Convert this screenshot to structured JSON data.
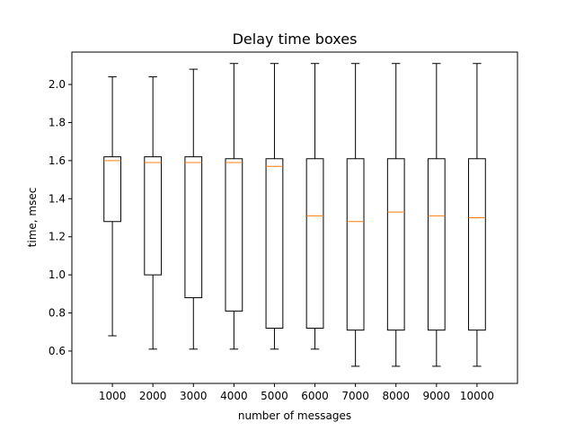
{
  "chart_data": {
    "type": "box",
    "title": "Delay time boxes",
    "xlabel": "number of messages",
    "ylabel": "time, msec",
    "categories": [
      "1000",
      "2000",
      "3000",
      "4000",
      "5000",
      "6000",
      "7000",
      "8000",
      "9000",
      "10000"
    ],
    "ylim": [
      0.43,
      2.17
    ],
    "yticks": [
      "0.6",
      "0.8",
      "1.0",
      "1.2",
      "1.4",
      "1.6",
      "1.8",
      "2.0"
    ],
    "grid": false,
    "colors": {
      "box": "#000000",
      "median": "#ff7f0e"
    },
    "boxes": [
      {
        "min": 0.68,
        "q1": 1.28,
        "median": 1.6,
        "q3": 1.62,
        "max": 2.04
      },
      {
        "min": 0.61,
        "q1": 1.0,
        "median": 1.59,
        "q3": 1.62,
        "max": 2.04
      },
      {
        "min": 0.61,
        "q1": 0.88,
        "median": 1.59,
        "q3": 1.62,
        "max": 2.08
      },
      {
        "min": 0.61,
        "q1": 0.81,
        "median": 1.59,
        "q3": 1.61,
        "max": 2.11
      },
      {
        "min": 0.61,
        "q1": 0.72,
        "median": 1.57,
        "q3": 1.61,
        "max": 2.11
      },
      {
        "min": 0.61,
        "q1": 0.72,
        "median": 1.31,
        "q3": 1.61,
        "max": 2.11
      },
      {
        "min": 0.52,
        "q1": 0.71,
        "median": 1.28,
        "q3": 1.61,
        "max": 2.11
      },
      {
        "min": 0.52,
        "q1": 0.71,
        "median": 1.33,
        "q3": 1.61,
        "max": 2.11
      },
      {
        "min": 0.52,
        "q1": 0.71,
        "median": 1.31,
        "q3": 1.61,
        "max": 2.11
      },
      {
        "min": 0.52,
        "q1": 0.71,
        "median": 1.3,
        "q3": 1.61,
        "max": 2.11
      }
    ]
  }
}
